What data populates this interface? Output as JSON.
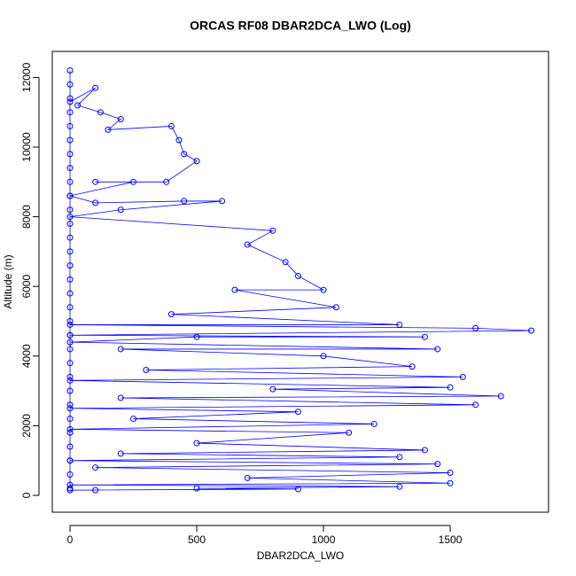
{
  "chart_data": {
    "type": "scatter",
    "title": "ORCAS RF08 DBAR2DCA_LWO (Log)",
    "x_label": "DBAR2DCA_LWO",
    "y_label": "Altitude (m)",
    "xlim": [
      -70,
      1888
    ],
    "ylim": [
      -483,
      12748
    ],
    "xticks": [
      0,
      500,
      1000,
      1500
    ],
    "yticks": [
      0,
      2000,
      4000,
      6000,
      8000,
      10000,
      12000
    ],
    "series": [
      {
        "color": "#0000ff",
        "x": [
          0,
          0,
          0,
          0,
          0,
          0,
          0,
          0,
          0,
          0,
          0,
          0,
          0,
          0,
          0,
          0,
          0,
          0,
          0,
          0,
          0,
          0,
          0,
          0,
          0,
          0,
          0,
          0,
          0,
          0,
          0,
          0,
          100,
          30,
          120,
          200,
          150,
          400,
          430,
          450,
          500,
          380,
          100,
          250,
          0,
          100,
          450,
          600,
          200,
          0,
          800,
          700,
          850,
          900,
          1000,
          650,
          1050,
          400,
          1300,
          0,
          1600,
          1820,
          0,
          1400,
          500,
          0,
          1450,
          200,
          1000,
          1350,
          300,
          1550,
          0,
          1500,
          800,
          1700,
          200,
          1600,
          0,
          900,
          250,
          1200,
          0,
          1100,
          500,
          1400,
          200,
          1300,
          0,
          1450,
          100,
          1500,
          700,
          1500,
          0,
          1300,
          500,
          900,
          0,
          100
        ],
        "values": [
          12200,
          11800,
          11400,
          11000,
          10600,
          10200,
          9800,
          9400,
          9000,
          8600,
          8200,
          7800,
          7400,
          7000,
          6600,
          6200,
          5800,
          5400,
          5000,
          4600,
          4200,
          3800,
          3400,
          3000,
          2600,
          2200,
          1800,
          1400,
          1000,
          600,
          200,
          11300,
          11700,
          11200,
          11000,
          10800,
          10500,
          10600,
          10200,
          9800,
          9600,
          9000,
          9000,
          9000,
          8600,
          8400,
          8450,
          8450,
          8200,
          8000,
          7600,
          7200,
          6700,
          6300,
          5900,
          5900,
          5400,
          5200,
          4900,
          4900,
          4800,
          4730,
          4600,
          4550,
          4550,
          4400,
          4200,
          4200,
          4000,
          3700,
          3600,
          3400,
          3300,
          3100,
          3050,
          2850,
          2800,
          2600,
          2500,
          2400,
          2200,
          2050,
          1900,
          1800,
          1500,
          1300,
          1200,
          1100,
          1000,
          900,
          800,
          650,
          500,
          350,
          300,
          250,
          200,
          180,
          150,
          150
        ]
      }
    ]
  }
}
